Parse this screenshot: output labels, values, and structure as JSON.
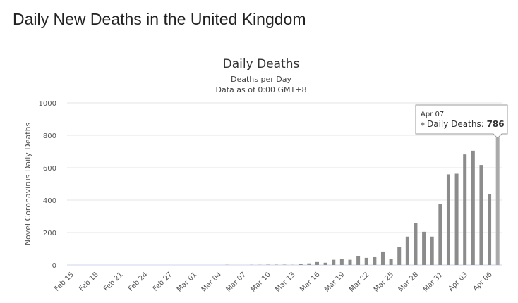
{
  "page": {
    "title": "Daily New Deaths in the United Kingdom"
  },
  "chart_data": {
    "type": "bar",
    "title": "Daily Deaths",
    "subtitle": "Deaths per Day",
    "subtitle2": "Data as of 0:00 GMT+8",
    "xlabel": "",
    "ylabel": "Novel Coronavirus Daily Deaths",
    "ylim": [
      0,
      1000
    ],
    "yticks": [
      0,
      200,
      400,
      600,
      800,
      1000
    ],
    "grid": true,
    "categories": [
      "Feb 15",
      "Feb 16",
      "Feb 17",
      "Feb 18",
      "Feb 19",
      "Feb 20",
      "Feb 21",
      "Feb 22",
      "Feb 23",
      "Feb 24",
      "Feb 25",
      "Feb 26",
      "Feb 27",
      "Feb 28",
      "Feb 29",
      "Mar 01",
      "Mar 02",
      "Mar 03",
      "Mar 04",
      "Mar 05",
      "Mar 06",
      "Mar 07",
      "Mar 08",
      "Mar 09",
      "Mar 10",
      "Mar 11",
      "Mar 12",
      "Mar 13",
      "Mar 14",
      "Mar 15",
      "Mar 16",
      "Mar 17",
      "Mar 18",
      "Mar 19",
      "Mar 20",
      "Mar 21",
      "Mar 22",
      "Mar 23",
      "Mar 24",
      "Mar 25",
      "Mar 26",
      "Mar 27",
      "Mar 28",
      "Mar 29",
      "Mar 30",
      "Mar 31",
      "Apr 01",
      "Apr 02",
      "Apr 03",
      "Apr 04",
      "Apr 05",
      "Apr 06",
      "Apr 07"
    ],
    "xtick_labels": [
      "Feb 15",
      "Feb 18",
      "Feb 21",
      "Feb 24",
      "Feb 27",
      "Mar 01",
      "Mar 04",
      "Mar 07",
      "Mar 10",
      "Mar 13",
      "Mar 16",
      "Mar 19",
      "Mar 22",
      "Mar 25",
      "Mar 28",
      "Mar 31",
      "Apr 03",
      "Apr 06"
    ],
    "series": [
      {
        "name": "Daily Deaths",
        "color": "#8c8c8c",
        "values": [
          0,
          0,
          0,
          0,
          0,
          0,
          0,
          0,
          0,
          0,
          0,
          0,
          0,
          0,
          0,
          0,
          0,
          0,
          0,
          1,
          0,
          0,
          1,
          1,
          2,
          2,
          2,
          1,
          5,
          10,
          18,
          14,
          32,
          36,
          32,
          53,
          44,
          48,
          83,
          36,
          110,
          175,
          258,
          205,
          175,
          375,
          559,
          563,
          682,
          705,
          617,
          437,
          786
        ]
      }
    ],
    "tooltip": {
      "date": "Apr 07",
      "label": "Daily Deaths: ",
      "value": "786"
    }
  }
}
